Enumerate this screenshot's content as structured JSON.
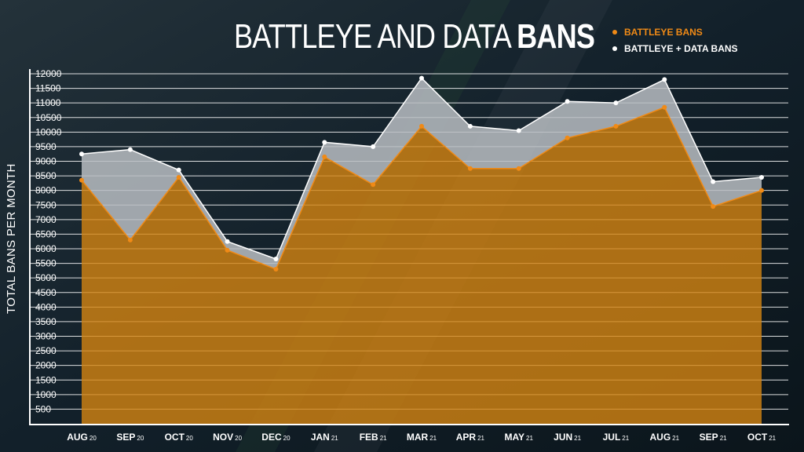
{
  "title": {
    "light": "BATTLEYE AND DATA ",
    "bold": "BANS"
  },
  "colors": {
    "battleye": "#f08a16",
    "total": "#ffffff"
  },
  "chart_data": {
    "type": "area",
    "title": "BATTLEYE AND DATA BANS",
    "ylabel": "TOTAL BANS PER MONTH",
    "xlabel": "",
    "ylim": [
      0,
      12000
    ],
    "yticks": [
      500,
      1000,
      1500,
      2000,
      2500,
      3000,
      3500,
      4000,
      4500,
      5000,
      5500,
      6000,
      6500,
      7000,
      7500,
      8000,
      8500,
      9000,
      9500,
      10000,
      10500,
      11000,
      11500,
      12000
    ],
    "grid": true,
    "legend_position": "top-right",
    "categories": [
      {
        "month": "AUG",
        "year": "20"
      },
      {
        "month": "SEP",
        "year": "20"
      },
      {
        "month": "OCT",
        "year": "20"
      },
      {
        "month": "NOV",
        "year": "20"
      },
      {
        "month": "DEC",
        "year": "20"
      },
      {
        "month": "JAN",
        "year": "21"
      },
      {
        "month": "FEB",
        "year": "21"
      },
      {
        "month": "MAR",
        "year": "21"
      },
      {
        "month": "APR",
        "year": "21"
      },
      {
        "month": "MAY",
        "year": "21"
      },
      {
        "month": "JUN",
        "year": "21"
      },
      {
        "month": "JUL",
        "year": "21"
      },
      {
        "month": "AUG",
        "year": "21"
      },
      {
        "month": "SEP",
        "year": "21"
      },
      {
        "month": "OCT",
        "year": "21"
      }
    ],
    "series": [
      {
        "name": "BATTLEYE BANS",
        "values": [
          8350,
          6300,
          8450,
          5950,
          5300,
          9150,
          8200,
          10200,
          8750,
          8750,
          9800,
          10200,
          10850,
          7450,
          8000
        ]
      },
      {
        "name": "BATTLEYE + DATA BANS",
        "values": [
          9250,
          9400,
          8700,
          6250,
          5650,
          9650,
          9500,
          11850,
          10200,
          10050,
          11050,
          11000,
          11800,
          8300,
          8450
        ]
      }
    ]
  }
}
